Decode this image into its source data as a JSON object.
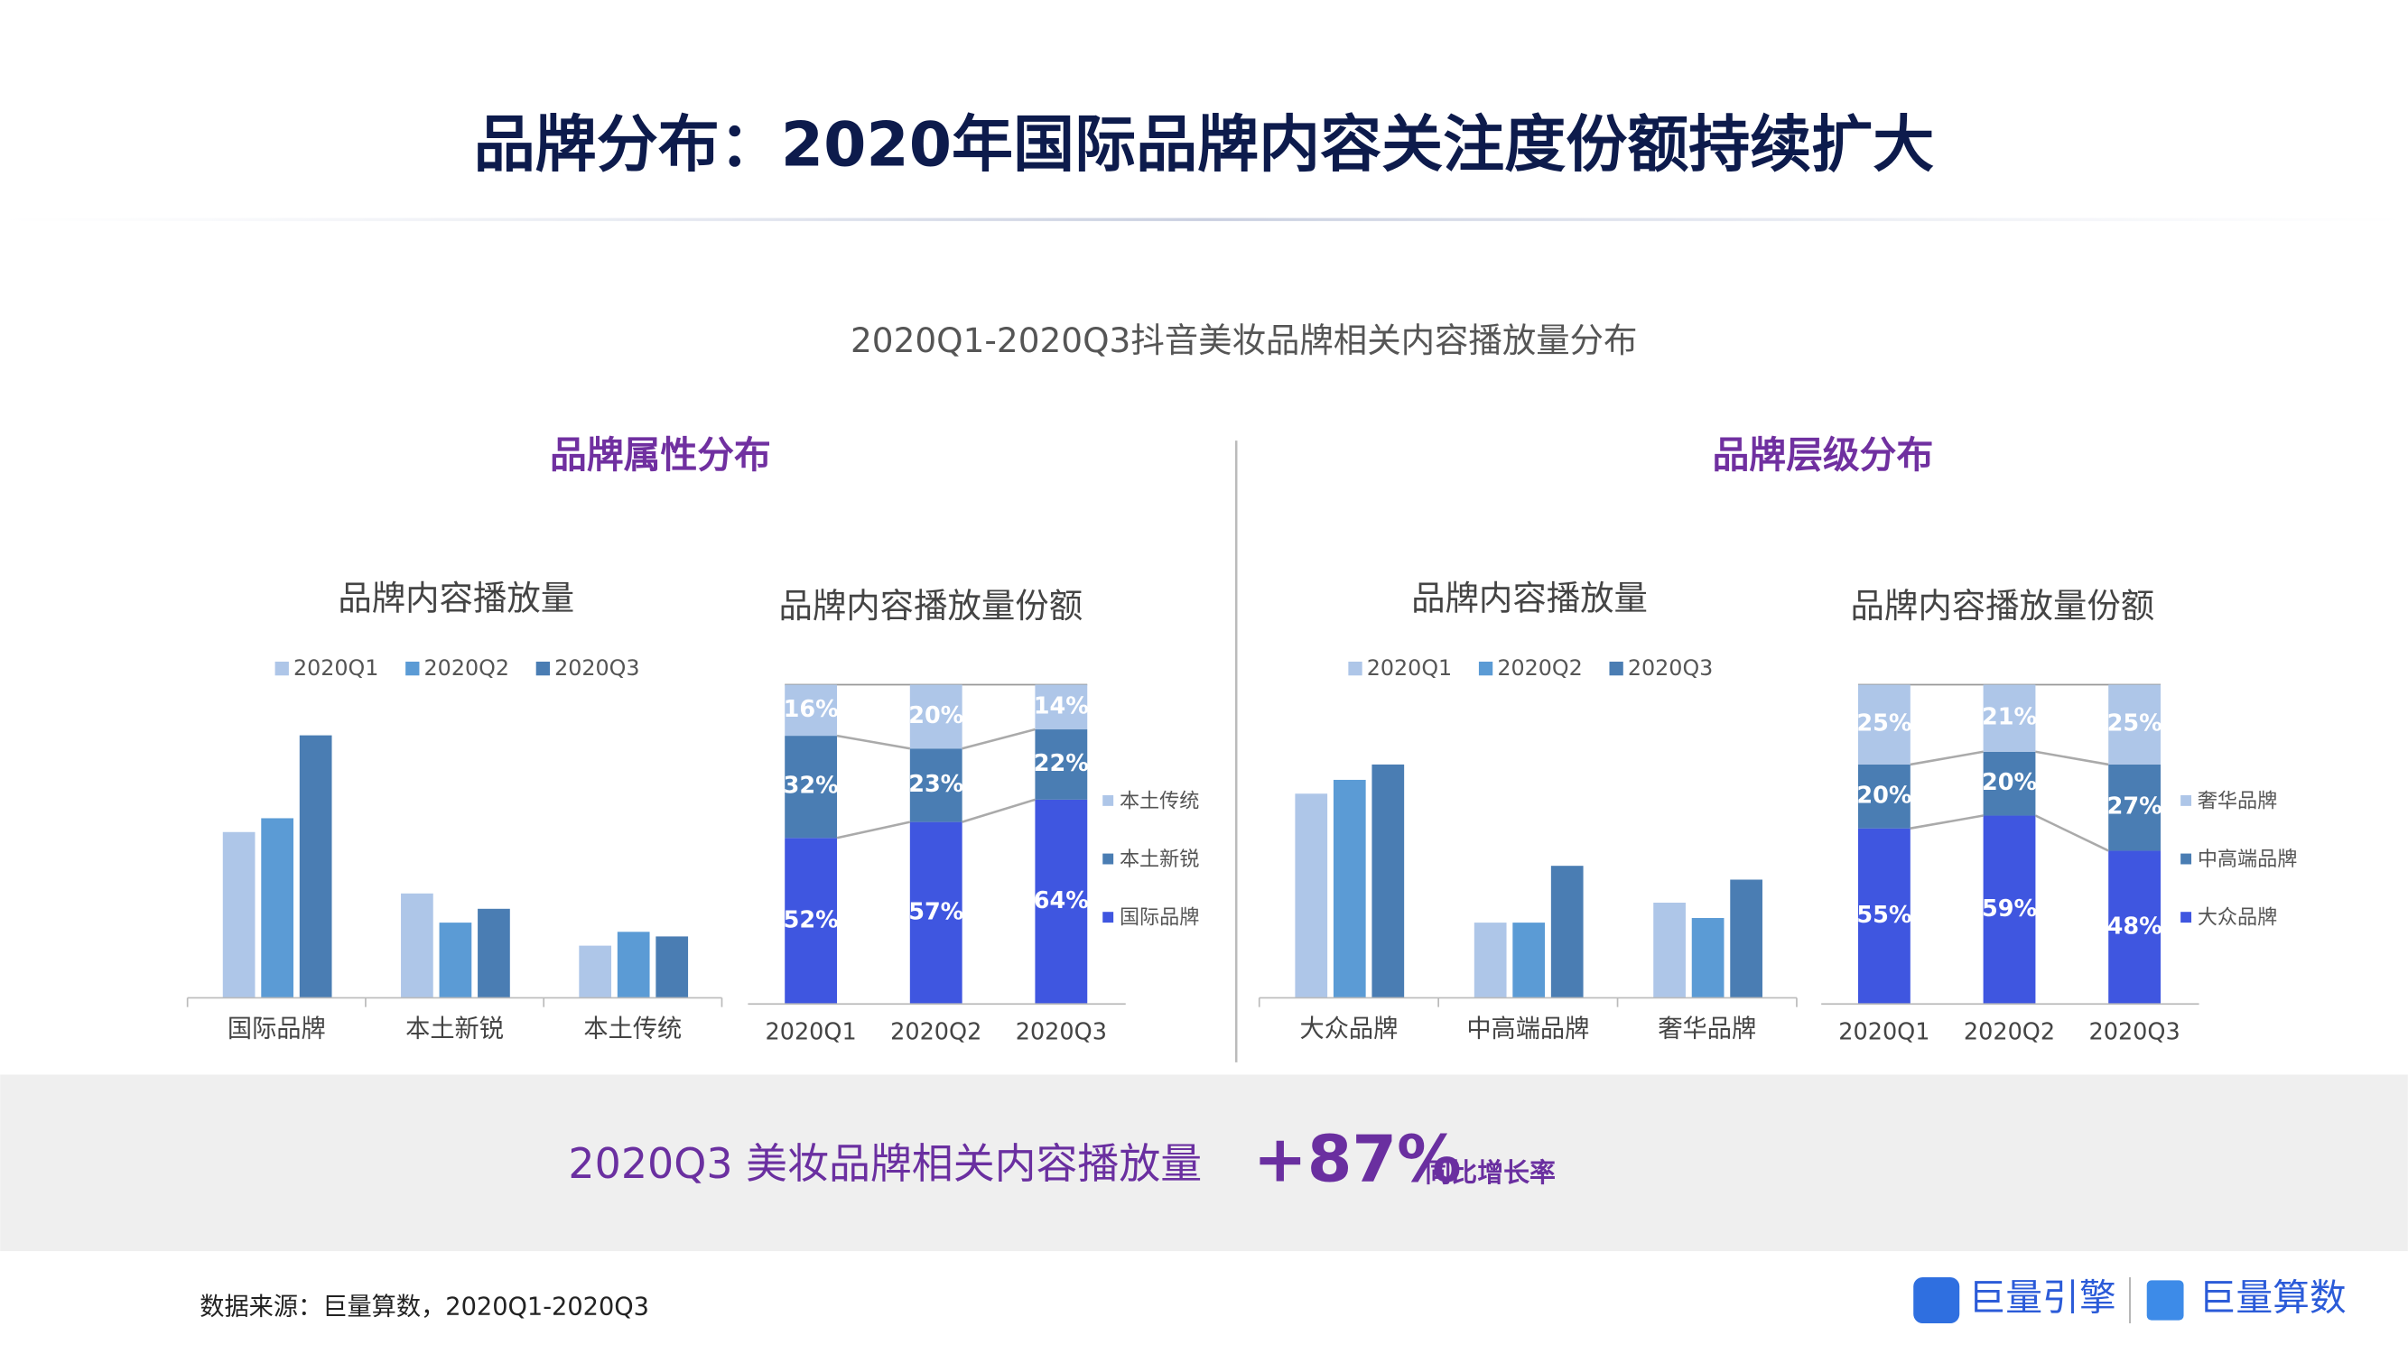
{
  "title": "品牌分布：2020年国际品牌内容关注度份额持续扩大",
  "subtitle": "2020Q1-2020Q3抖音美妆品牌相关内容播放量分布",
  "sections": [
    "品牌属性分布",
    "品牌层级分布"
  ],
  "chart_data": [
    {
      "type": "bar",
      "title": "品牌内容播放量",
      "categories": [
        "国际品牌",
        "本土新锐",
        "本土传统"
      ],
      "ylim": [
        0,
        200
      ],
      "series": [
        {
          "name": "2020Q1",
          "color": "#aec6e8",
          "values": [
            108,
            68,
            34
          ]
        },
        {
          "name": "2020Q2",
          "color": "#5b9bd5",
          "values": [
            117,
            49,
            43
          ]
        },
        {
          "name": "2020Q3",
          "color": "#4a7db3",
          "values": [
            171,
            58,
            40
          ]
        }
      ]
    },
    {
      "type": "stacked_bar",
      "title": "品牌内容播放量份额",
      "categories": [
        "2020Q1",
        "2020Q2",
        "2020Q3"
      ],
      "ylim": [
        0,
        100
      ],
      "series": [
        {
          "name": "国际品牌",
          "color": "#3f56e0",
          "values": [
            52,
            57,
            64
          ],
          "value_labels": [
            "52%",
            "57%",
            "64%"
          ]
        },
        {
          "name": "本土新锐",
          "color": "#4a7db3",
          "values": [
            32,
            23,
            22
          ],
          "value_labels": [
            "32%",
            "23%",
            "22%"
          ]
        },
        {
          "name": "本土传统",
          "color": "#aec6e8",
          "values": [
            16,
            20,
            14
          ],
          "value_labels": [
            "16%",
            "20%",
            "14%"
          ]
        }
      ]
    },
    {
      "type": "bar",
      "title": "品牌内容播放量",
      "categories": [
        "大众品牌",
        "中高端品牌",
        "奢华品牌"
      ],
      "ylim": [
        0,
        200
      ],
      "series": [
        {
          "name": "2020Q1",
          "color": "#aec6e8",
          "values": [
            133,
            49,
            62
          ]
        },
        {
          "name": "2020Q2",
          "color": "#5b9bd5",
          "values": [
            142,
            49,
            52
          ]
        },
        {
          "name": "2020Q3",
          "color": "#4a7db3",
          "values": [
            152,
            86,
            77
          ]
        }
      ]
    },
    {
      "type": "stacked_bar",
      "title": "品牌内容播放量份额",
      "categories": [
        "2020Q1",
        "2020Q2",
        "2020Q3"
      ],
      "ylim": [
        0,
        100
      ],
      "series": [
        {
          "name": "大众品牌",
          "color": "#3f56e0",
          "values": [
            55,
            59,
            48
          ],
          "value_labels": [
            "55%",
            "59%",
            "48%"
          ]
        },
        {
          "name": "中高端品牌",
          "color": "#4a7db3",
          "values": [
            20,
            20,
            27
          ],
          "value_labels": [
            "20%",
            "20%",
            "27%"
          ]
        },
        {
          "name": "奢华品牌",
          "color": "#aec6e8",
          "values": [
            25,
            21,
            25
          ],
          "value_labels": [
            "25%",
            "21%",
            "25%"
          ]
        }
      ]
    }
  ],
  "highlight": {
    "label": "2020Q3 美妆品牌相关内容播放量",
    "value": "+87%",
    "note": "同比增长率"
  },
  "source": "数据来源：巨量算数，2020Q1-2020Q3",
  "logos": [
    "巨量引擎",
    "巨量算数"
  ]
}
